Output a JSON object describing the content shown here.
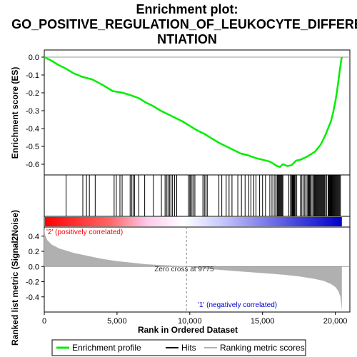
{
  "chart_data": {
    "type": "line",
    "title_lines": [
      "Enrichment plot:",
      "GO_POSITIVE_REGULATION_OF_LEUKOCYTE_DIFFERE",
      "NTIATION"
    ],
    "es_panel": {
      "ylabel": "Enrichment score (ES)",
      "ylim": [
        -0.66,
        0.04
      ],
      "yticks": [
        "0.0",
        "-0.1",
        "-0.2",
        "-0.3",
        "-0.4",
        "-0.5",
        "-0.6"
      ],
      "ytick_values": [
        0.0,
        -0.1,
        -0.2,
        -0.3,
        -0.4,
        -0.5,
        -0.6
      ],
      "series": [
        {
          "name": "Enrichment profile",
          "color": "#00ee00",
          "x": [
            0,
            500,
            1000,
            1500,
            2000,
            2600,
            3300,
            4000,
            4700,
            5400,
            6000,
            6500,
            7000,
            7500,
            8000,
            8500,
            9000,
            9500,
            10000,
            10500,
            11000,
            11500,
            12000,
            12500,
            13000,
            13500,
            14000,
            14500,
            15000,
            15500,
            15800,
            16000,
            16200,
            16400,
            16700,
            17000,
            17300,
            17600,
            18000,
            18300,
            18600,
            19000,
            19300,
            19500,
            19700,
            19850,
            20000,
            20100,
            20200,
            20300,
            20400,
            20450
          ],
          "y": [
            0.0,
            -0.02,
            -0.045,
            -0.065,
            -0.09,
            -0.11,
            -0.125,
            -0.155,
            -0.19,
            -0.2,
            -0.215,
            -0.23,
            -0.255,
            -0.275,
            -0.3,
            -0.32,
            -0.34,
            -0.36,
            -0.385,
            -0.41,
            -0.43,
            -0.455,
            -0.48,
            -0.5,
            -0.52,
            -0.54,
            -0.55,
            -0.565,
            -0.575,
            -0.585,
            -0.6,
            -0.61,
            -0.615,
            -0.6,
            -0.61,
            -0.605,
            -0.58,
            -0.575,
            -0.56,
            -0.545,
            -0.53,
            -0.49,
            -0.44,
            -0.4,
            -0.36,
            -0.31,
            -0.25,
            -0.2,
            -0.14,
            -0.08,
            -0.02,
            0.0
          ]
        }
      ]
    },
    "hits": {
      "name": "Hits",
      "positions": [
        1500,
        2650,
        2900,
        3100,
        3500,
        4800,
        4950,
        5200,
        5350,
        5900,
        6000,
        6100,
        6200,
        6500,
        6900,
        7500,
        8050,
        8300,
        8400,
        8500,
        8600,
        8700,
        8800,
        8950,
        9100,
        9900,
        10000,
        10050,
        10150,
        10250,
        10350,
        10900,
        11000,
        11100,
        11200,
        12000,
        12200,
        12500,
        12700,
        12900,
        13300,
        13550,
        13800,
        14050,
        14200,
        14400,
        14550,
        14800,
        15000,
        15200,
        15500,
        15650,
        15800,
        15900,
        16000,
        16050,
        16100,
        16150,
        16200,
        16250,
        16300,
        16350,
        16400,
        16800,
        16900,
        17000,
        17050,
        17100,
        17150,
        17200,
        17250,
        17350,
        17600,
        17700,
        17800,
        17900,
        18000,
        18100,
        18150,
        18200,
        18250,
        18300,
        18400,
        18500,
        18550,
        18600,
        18650,
        18700,
        18750,
        18800,
        18850,
        18900,
        18950,
        19000,
        19050,
        19100,
        19150,
        19200,
        19250,
        19300,
        19400,
        19500,
        19550,
        19600,
        19650,
        19700,
        19750,
        19800,
        19850,
        19900,
        19950,
        20000,
        20050,
        20100,
        20150,
        20200,
        20250,
        20300,
        20350
      ]
    },
    "metric_panel": {
      "ylabel": "Ranked list metric (Signal2Noise)",
      "ylim": [
        -0.6,
        0.52
      ],
      "yticks": [
        "0.4",
        "0.2",
        "0.0",
        "-0.2",
        "-0.4"
      ],
      "ytick_values": [
        0.4,
        0.2,
        0.0,
        -0.2,
        -0.4
      ],
      "x": [
        0,
        50,
        200,
        500,
        1000,
        2000,
        3000,
        4000,
        5000,
        6000,
        7000,
        8000,
        9000,
        9775,
        10500,
        11500,
        12500,
        13500,
        14500,
        15500,
        16500,
        17500,
        18500,
        19200,
        19700,
        20000,
        20200,
        20350,
        20450
      ],
      "values": [
        0.52,
        0.42,
        0.35,
        0.29,
        0.24,
        0.18,
        0.14,
        0.1,
        0.07,
        0.05,
        0.03,
        0.02,
        0.01,
        0.0,
        -0.02,
        -0.035,
        -0.05,
        -0.065,
        -0.08,
        -0.095,
        -0.11,
        -0.13,
        -0.16,
        -0.19,
        -0.23,
        -0.27,
        -0.32,
        -0.4,
        -0.58
      ],
      "fill_color": "#b0b0b0",
      "zero_cross_label": "Zero cross at 9775",
      "zero_cross": 9775,
      "pos_label": "'2' (positively correlated)",
      "neg_label": "'1' (negatively correlated)",
      "pos_color": "#ff0000",
      "neg_color": "#0000cc"
    },
    "x_axis": {
      "xlabel": "Rank in Ordered Dataset",
      "xlim": [
        0,
        21000
      ],
      "xticks": [
        "0",
        "5,000",
        "10,000",
        "15,000",
        "20,000"
      ],
      "xtick_values": [
        0,
        5000,
        10000,
        15000,
        20000
      ]
    },
    "legend": {
      "placement": "bottom",
      "items": [
        {
          "label": "Enrichment profile",
          "color": "#00ee00"
        },
        {
          "label": "Hits",
          "color": "#000000"
        },
        {
          "label": "Ranking metric scores",
          "color": "#b0b0b0"
        }
      ]
    }
  }
}
